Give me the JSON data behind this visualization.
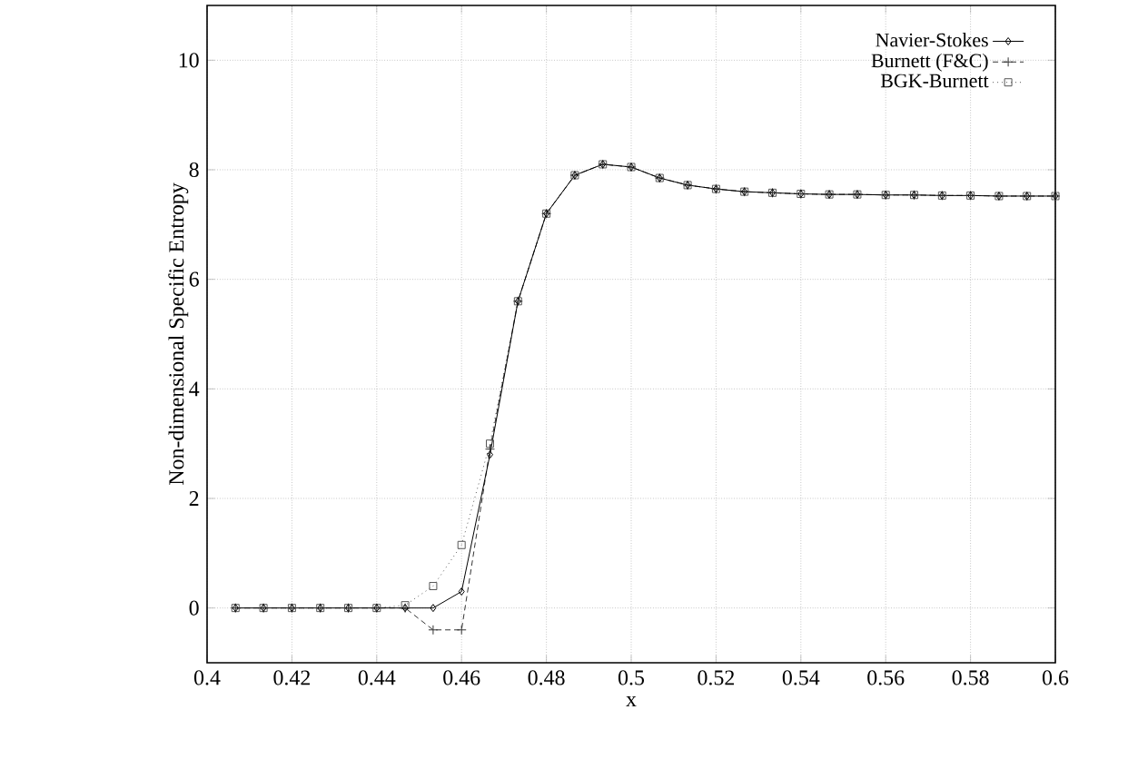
{
  "chart_data": {
    "type": "line",
    "xlabel": "x",
    "ylabel": "Non-dimensional Specific Entropy",
    "x": [
      0.4067,
      0.4133,
      0.42,
      0.4267,
      0.4333,
      0.44,
      0.4467,
      0.4533,
      0.46,
      0.4667,
      0.4733,
      0.48,
      0.4867,
      0.4933,
      0.5,
      0.5067,
      0.5133,
      0.52,
      0.5267,
      0.5333,
      0.54,
      0.5467,
      0.5533,
      0.56,
      0.5667,
      0.5733,
      0.58,
      0.5867,
      0.5933,
      0.6
    ],
    "series": [
      {
        "name": "Navier-Stokes",
        "color": "#000000",
        "marker": "diamond",
        "line_style": "solid",
        "values": [
          0,
          0,
          0,
          0,
          0,
          0,
          0,
          0,
          0.3,
          2.8,
          5.6,
          7.2,
          7.9,
          8.1,
          8.05,
          7.85,
          7.72,
          7.65,
          7.6,
          7.58,
          7.56,
          7.55,
          7.55,
          7.54,
          7.54,
          7.53,
          7.53,
          7.52,
          7.52,
          7.52
        ]
      },
      {
        "name": "Burnett (F&C)",
        "color": "#333333",
        "marker": "cross",
        "line_style": "dashed",
        "values": [
          0,
          0,
          0,
          0,
          0,
          0,
          0,
          -0.4,
          -0.4,
          2.9,
          5.6,
          7.2,
          7.9,
          8.1,
          8.05,
          7.85,
          7.72,
          7.65,
          7.6,
          7.58,
          7.56,
          7.55,
          7.55,
          7.54,
          7.54,
          7.53,
          7.53,
          7.52,
          7.52,
          7.52
        ]
      },
      {
        "name": "BGK-Burnett",
        "color": "#555555",
        "marker": "square",
        "line_style": "dotted",
        "values": [
          0,
          0,
          0,
          0,
          0,
          0,
          0.05,
          0.4,
          1.15,
          3.0,
          5.6,
          7.2,
          7.9,
          8.1,
          8.05,
          7.85,
          7.72,
          7.65,
          7.6,
          7.58,
          7.56,
          7.55,
          7.55,
          7.54,
          7.54,
          7.53,
          7.53,
          7.52,
          7.52,
          7.52
        ]
      }
    ],
    "xlim": [
      0.4,
      0.6
    ],
    "ylim": [
      -1,
      11
    ],
    "xticks": [
      0.4,
      0.42,
      0.44,
      0.46,
      0.48,
      0.5,
      0.52,
      0.54,
      0.56,
      0.58,
      0.6
    ],
    "yticks": [
      0,
      2,
      4,
      6,
      8,
      10
    ],
    "grid": true,
    "legend": "top right"
  }
}
